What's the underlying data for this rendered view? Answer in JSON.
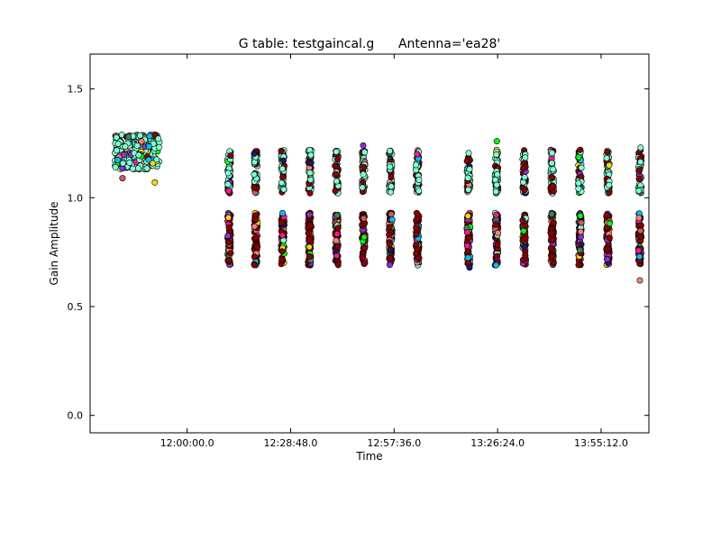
{
  "chart_data": {
    "type": "scatter",
    "title": "G table: testgaincal.g      Antenna='ea28'",
    "xlabel": "Time",
    "ylabel": "Gain Amplitude",
    "x_unit": "minutes since 00:00",
    "xlim": [
      693.0,
      848.5
    ],
    "ylim": [
      -0.08,
      1.66
    ],
    "x_ticks": [
      {
        "label": "12:00:00.0",
        "value": 720.0
      },
      {
        "label": "12:28:48.0",
        "value": 748.8
      },
      {
        "label": "12:57:36.0",
        "value": 777.6
      },
      {
        "label": "13:26:24.0",
        "value": 806.4
      },
      {
        "label": "13:55:12.0",
        "value": 835.2
      }
    ],
    "y_ticks": [
      {
        "label": "0.0",
        "value": 0.0
      },
      {
        "label": "0.5",
        "value": 0.5
      },
      {
        "label": "1.0",
        "value": 1.0
      },
      {
        "label": "1.5",
        "value": 1.5
      }
    ],
    "scan_times": [
      706.6,
      731.7,
      739.1,
      746.6,
      754.1,
      761.6,
      769.1,
      776.6,
      784.1,
      798.3,
      806.1,
      813.8,
      821.6,
      829.3,
      837.1,
      846.0
    ],
    "early_scan": {
      "x_start": 699.9,
      "x_end": 712.4,
      "y_center": 1.21
    },
    "upper_band": {
      "y_min": 1.02,
      "y_max": 1.22
    },
    "lower_band": {
      "y_min": 0.69,
      "y_max": 0.93
    },
    "outliers": [
      {
        "x": 784.0,
        "y": 1.2
      },
      {
        "x": 769.0,
        "y": 1.24
      },
      {
        "x": 806.2,
        "y": 1.26
      },
      {
        "x": 829.4,
        "y": 1.22
      },
      {
        "x": 846.2,
        "y": 1.23
      },
      {
        "x": 846.0,
        "y": 0.62
      },
      {
        "x": 798.6,
        "y": 0.68
      },
      {
        "x": 806.0,
        "y": 0.69
      },
      {
        "x": 711.0,
        "y": 1.07
      },
      {
        "x": 702.0,
        "y": 1.09
      }
    ],
    "series_colors": [
      "#ff1493",
      "#8a2be2",
      "#00ff00",
      "#8b0000",
      "#7fffd4",
      "#fa8072",
      "#191970",
      "#00bfff",
      "#ffd700",
      "#cd5c5c",
      "#9932cc",
      "#2e8b57"
    ],
    "marker_edge_color": "#000000"
  }
}
